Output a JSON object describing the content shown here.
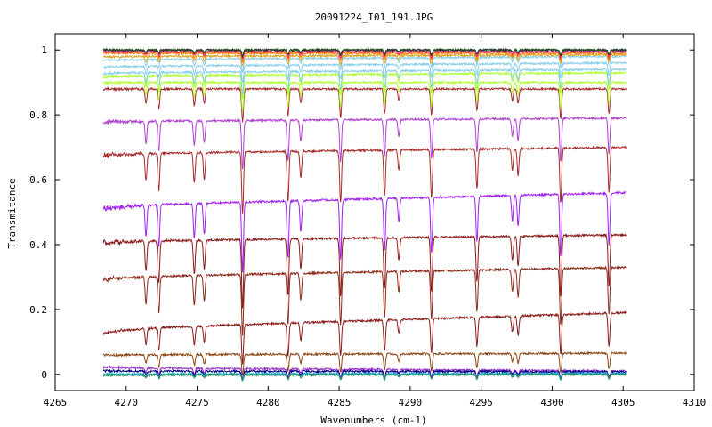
{
  "chart_data": {
    "type": "line",
    "title": "20091224_I01_191.JPG",
    "xlabel": "Wavenumbers (cm-1)",
    "ylabel": "Transmitance",
    "xlim": [
      4265,
      4310
    ],
    "ylim": [
      -0.05,
      1.05
    ],
    "xticks": [
      4265,
      4270,
      4275,
      4280,
      4285,
      4290,
      4295,
      4300,
      4305,
      4310
    ],
    "yticks": [
      0,
      0.2,
      0.4,
      0.6,
      0.8,
      1
    ],
    "x_range": [
      4268.4,
      4305.2
    ],
    "grid": false,
    "legend": "none",
    "absorption_lines": [
      {
        "x": 4271.4,
        "depth": 0.16
      },
      {
        "x": 4272.3,
        "depth": 0.22
      },
      {
        "x": 4274.8,
        "depth": 0.18
      },
      {
        "x": 4275.5,
        "depth": 0.16
      },
      {
        "x": 4278.2,
        "depth": 0.36
      },
      {
        "x": 4281.4,
        "depth": 0.3
      },
      {
        "x": 4282.3,
        "depth": 0.16
      },
      {
        "x": 4285.1,
        "depth": 0.31
      },
      {
        "x": 4288.2,
        "depth": 0.27
      },
      {
        "x": 4289.2,
        "depth": 0.12
      },
      {
        "x": 4291.5,
        "depth": 0.29
      },
      {
        "x": 4294.7,
        "depth": 0.24
      },
      {
        "x": 4297.2,
        "depth": 0.13
      },
      {
        "x": 4297.6,
        "depth": 0.16
      },
      {
        "x": 4300.6,
        "depth": 0.33
      },
      {
        "x": 4304.0,
        "depth": 0.27
      }
    ],
    "series": [
      {
        "color": "#8b1a1a",
        "start": 0.14,
        "end": 0.19
      },
      {
        "color": "#8b2a1a",
        "start": 0.3,
        "end": 0.33
      },
      {
        "color": "#8b1a1a",
        "start": 0.41,
        "end": 0.43
      },
      {
        "color": "#a020f0",
        "start": 0.52,
        "end": 0.56
      },
      {
        "color": "#a52a2a",
        "start": 0.68,
        "end": 0.7
      },
      {
        "color": "#b040d0",
        "start": 0.78,
        "end": 0.79
      },
      {
        "color": "#a52a2a",
        "start": 0.88,
        "end": 0.88
      },
      {
        "color": "#adff2f",
        "start": 0.9,
        "end": 0.9
      },
      {
        "color": "#adff2f",
        "start": 0.92,
        "end": 0.93
      },
      {
        "color": "#87ceeb",
        "start": 0.93,
        "end": 0.94
      },
      {
        "color": "#87ceeb",
        "start": 0.95,
        "end": 0.96
      },
      {
        "color": "#87ceeb",
        "start": 0.97,
        "end": 0.98
      },
      {
        "color": "#daa520",
        "start": 0.98,
        "end": 0.985
      },
      {
        "color": "#ff7f00",
        "start": 0.99,
        "end": 0.99
      },
      {
        "color": "#ff1493",
        "start": 0.995,
        "end": 0.995
      },
      {
        "color": "#228b22",
        "start": 1.0,
        "end": 1.0
      },
      {
        "color": "#333333",
        "start": 1.0,
        "end": 1.0
      },
      {
        "color": "#8b4513",
        "start": 0.06,
        "end": 0.065
      },
      {
        "color": "#9932cc",
        "start": 0.02,
        "end": 0.01
      },
      {
        "color": "#000080",
        "start": 0.01,
        "end": 0.008
      },
      {
        "color": "#1e90ff",
        "start": 0.0,
        "end": 0.003
      },
      {
        "color": "#00ced1",
        "start": 0.0,
        "end": 0.0
      },
      {
        "color": "#2e8b57",
        "start": -0.002,
        "end": 0.0
      }
    ]
  }
}
